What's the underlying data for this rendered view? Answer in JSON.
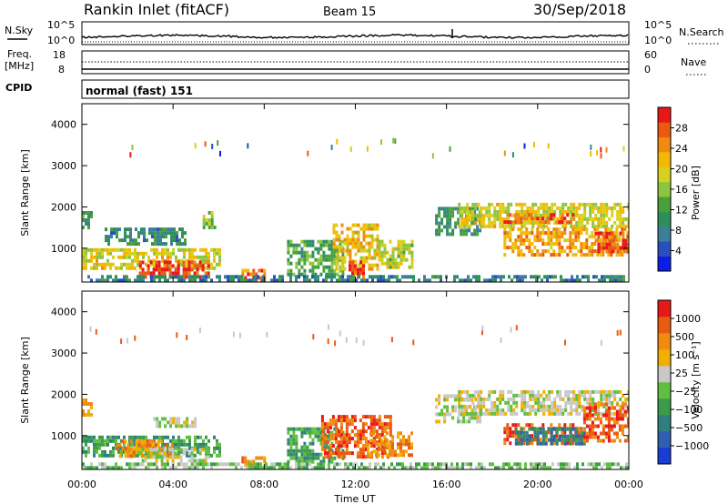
{
  "header": {
    "title": "Rankin Inlet (fitACF)",
    "beam": "Beam 15",
    "date": "30/Sep/2018"
  },
  "strip1": {
    "left_label": "N.Sky",
    "left_ticks": [
      "10^5",
      "10^0"
    ],
    "right_ticks": [
      "10^5",
      "10^0"
    ],
    "right_label": "N.Search"
  },
  "strip2": {
    "left_label_1": "Freq.",
    "left_label_2": "[MHz]",
    "left_ticks": [
      "18",
      "8"
    ],
    "right_ticks": [
      "60",
      "0"
    ],
    "right_label": "Nave"
  },
  "strip3": {
    "left_label": "CPID",
    "mode": "normal (fast) 151"
  },
  "chart_data": [
    {
      "type": "heatmap",
      "quantity": "power",
      "ylabel": "Slant Range [km]",
      "yticks": [
        "4000",
        "3000",
        "2000",
        "1000"
      ],
      "colorbar": {
        "label": "Power [dB]",
        "ticks": [
          "28",
          "24",
          "20",
          "16",
          "12",
          "8",
          "4"
        ],
        "range": [
          0,
          30
        ],
        "colors": [
          "#0a1ee6",
          "#2a4ec0",
          "#3b7f9a",
          "#2f8f5a",
          "#4aa03a",
          "#8cc63f",
          "#d8d020",
          "#f5b800",
          "#f08a10",
          "#ea5a10",
          "#e81818"
        ]
      },
      "regions": [
        {
          "t0": 0.0,
          "t1": 0.4,
          "r0": 1500,
          "r1": 1900,
          "v": 10
        },
        {
          "t0": 0.0,
          "t1": 6.0,
          "r0": 500,
          "r1": 1000,
          "v": 18
        },
        {
          "t0": 2.5,
          "t1": 5.5,
          "r0": 300,
          "r1": 700,
          "v": 27
        },
        {
          "t0": 1.0,
          "t1": 4.5,
          "r0": 1100,
          "r1": 1500,
          "v": 9
        },
        {
          "t0": 5.3,
          "t1": 5.8,
          "r0": 1500,
          "r1": 1900,
          "v": 14
        },
        {
          "t0": 7.0,
          "t1": 8.0,
          "r0": 200,
          "r1": 500,
          "v": 25
        },
        {
          "t0": 9.0,
          "t1": 11.5,
          "r0": 400,
          "r1": 1200,
          "v": 12
        },
        {
          "t0": 11.0,
          "t1": 13.0,
          "r0": 500,
          "r1": 1600,
          "v": 20
        },
        {
          "t0": 11.7,
          "t1": 12.3,
          "r0": 300,
          "r1": 700,
          "v": 27
        },
        {
          "t0": 13.0,
          "t1": 14.5,
          "r0": 500,
          "r1": 1200,
          "v": 17
        },
        {
          "t0": 15.5,
          "t1": 17.5,
          "r0": 1300,
          "r1": 2000,
          "v": 10
        },
        {
          "t0": 16.5,
          "t1": 24.0,
          "r0": 1500,
          "r1": 2100,
          "v": 18
        },
        {
          "t0": 18.5,
          "t1": 21.5,
          "r0": 1600,
          "r1": 1850,
          "v": 26
        },
        {
          "t0": 18.5,
          "t1": 24.0,
          "r0": 800,
          "r1": 1500,
          "v": 22
        },
        {
          "t0": 22.5,
          "t1": 24.0,
          "r0": 900,
          "r1": 1400,
          "v": 27
        },
        {
          "t0": 0.0,
          "t1": 24.0,
          "r0": 180,
          "r1": 350,
          "v": 8
        }
      ]
    },
    {
      "type": "heatmap",
      "quantity": "velocity",
      "ylabel": "Slant Range [km]",
      "yticks": [
        "4000",
        "3000",
        "2000",
        "1000"
      ],
      "colorbar": {
        "label": "Velocity [m s⁻¹]",
        "ticks": [
          "1000",
          "500",
          "100",
          "25",
          "−25",
          "−100",
          "−500",
          "−1000"
        ],
        "colors": [
          "#1a3cd6",
          "#2f5fb0",
          "#2f7f7f",
          "#3c9c4a",
          "#5fc040",
          "#c8c8c8",
          "#f0b000",
          "#f08a10",
          "#ea5a10",
          "#e81818"
        ]
      },
      "regions": [
        {
          "t0": 0.0,
          "t1": 0.4,
          "r0": 1500,
          "r1": 1900,
          "c": 7
        },
        {
          "t0": 0.0,
          "t1": 6.0,
          "r0": 500,
          "r1": 1000,
          "c": 3
        },
        {
          "t0": 1.5,
          "t1": 4.0,
          "r0": 500,
          "r1": 900,
          "c": 7
        },
        {
          "t0": 2.5,
          "t1": 5.5,
          "r0": 300,
          "r1": 700,
          "c": 5
        },
        {
          "t0": 3.0,
          "t1": 5.0,
          "r0": 1200,
          "r1": 1450,
          "c": 5
        },
        {
          "t0": 7.0,
          "t1": 8.0,
          "r0": 200,
          "r1": 500,
          "c": 7
        },
        {
          "t0": 9.0,
          "t1": 11.5,
          "r0": 400,
          "r1": 1200,
          "c": 3
        },
        {
          "t0": 10.5,
          "t1": 13.5,
          "r0": 500,
          "r1": 1500,
          "c": 8
        },
        {
          "t0": 12.5,
          "t1": 14.5,
          "r0": 500,
          "r1": 1100,
          "c": 7
        },
        {
          "t0": 15.5,
          "t1": 17.5,
          "r0": 1300,
          "r1": 2000,
          "c": 5
        },
        {
          "t0": 16.5,
          "t1": 24.0,
          "r0": 1500,
          "r1": 2100,
          "c": 5
        },
        {
          "t0": 18.5,
          "t1": 22.0,
          "r0": 800,
          "r1": 1300,
          "c": 8
        },
        {
          "t0": 19.0,
          "t1": 22.0,
          "r0": 800,
          "r1": 1200,
          "c": 2
        },
        {
          "t0": 22.0,
          "t1": 24.0,
          "r0": 900,
          "r1": 1800,
          "c": 8
        },
        {
          "t0": 0.0,
          "t1": 24.0,
          "r0": 180,
          "r1": 350,
          "c": 4
        }
      ]
    }
  ],
  "xaxis": {
    "ticks": [
      "00:00",
      "04:00",
      "08:00",
      "12:00",
      "16:00",
      "20:00",
      "00:00"
    ],
    "label": "Time UT",
    "range": [
      0,
      24
    ]
  },
  "yaxis_range": [
    180,
    4500
  ]
}
